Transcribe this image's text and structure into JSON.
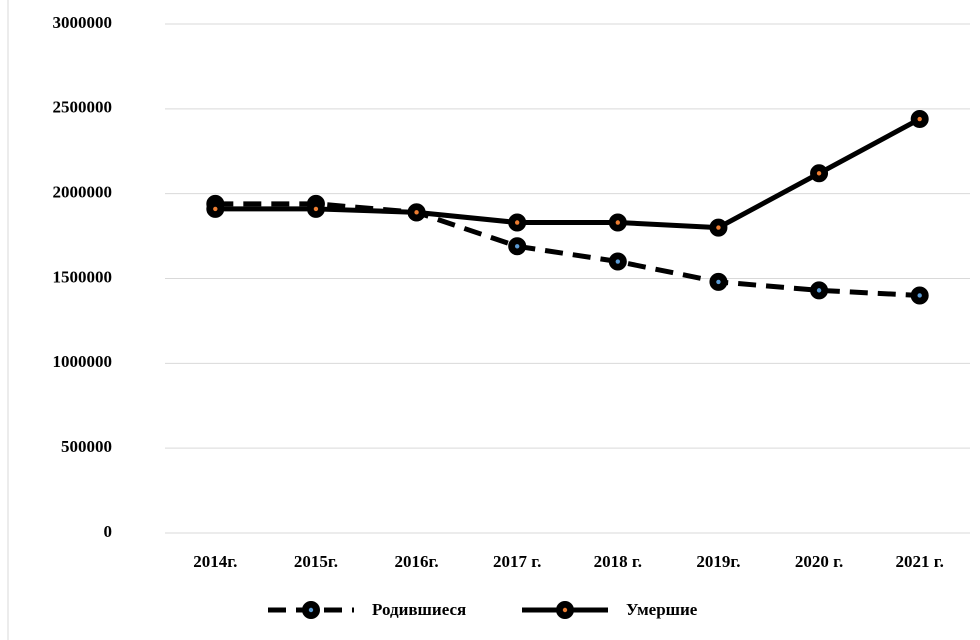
{
  "chart_data": {
    "type": "line",
    "categories": [
      "2014г.",
      "2015г.",
      "2016г.",
      "2017 г.",
      "2018 г.",
      "2019г.",
      "2020 г.",
      "2021 г."
    ],
    "series": [
      {
        "name": "Родившиеся",
        "color": "#000000",
        "marker_color": "#5b9bd5",
        "dashed": true,
        "values": [
          1940000,
          1940000,
          1890000,
          1690000,
          1600000,
          1480000,
          1430000,
          1400000
        ]
      },
      {
        "name": "Умершие",
        "color": "#000000",
        "marker_color": "#ed7d31",
        "dashed": false,
        "values": [
          1910000,
          1910000,
          1890000,
          1830000,
          1830000,
          1800000,
          2120000,
          2440000
        ]
      }
    ],
    "ylim": [
      0,
      3000000
    ],
    "yticks": [
      0,
      500000,
      1000000,
      1500000,
      2000000,
      2500000,
      3000000
    ],
    "grid": true,
    "legend": "bottom"
  }
}
